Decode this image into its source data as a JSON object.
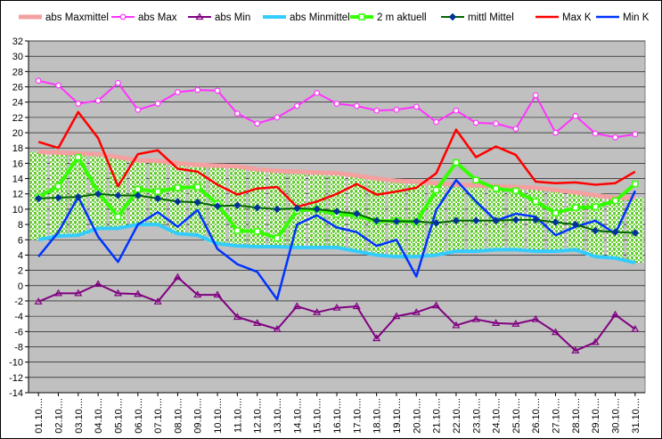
{
  "chart_data": {
    "type": "line",
    "ylim": [
      -14,
      32
    ],
    "y_ticks": [
      "32",
      "30",
      "28",
      "26",
      "24",
      "22",
      "20",
      "18",
      "16",
      "14",
      "12",
      "10",
      "8",
      "6",
      "4",
      "2",
      "0",
      "-2",
      "-4",
      "-6",
      "-8",
      "-10",
      "-12",
      "-14"
    ],
    "grid": true,
    "legend_position": "top",
    "categories": [
      "01.10.",
      "02.10.",
      "03.10.",
      "04.10.",
      "05.10.",
      "06.10.",
      "07.10.",
      "08.10.",
      "09.10.",
      "10.10.",
      "11.10.",
      "12.10.",
      "13.10.",
      "14.10.",
      "15.10.",
      "16.10.",
      "17.10.",
      "18.10.",
      "19.10.",
      "20.10.",
      "21.10.",
      "22.10.",
      "23.10.",
      "24.10.",
      "25.10.",
      "26.10.",
      "27.10.",
      "28.10.",
      "29.10.",
      "30.10.",
      "31.10."
    ],
    "tick_labels": [
      "01.10....",
      "02.10....",
      "03.10....",
      "04.10....",
      "05.10....",
      "06.10....",
      "07.10....",
      "08.10....",
      "09.10....",
      "10.10....",
      "11.10....",
      "12.10....",
      "13.10....",
      "14.10....",
      "15.10....",
      "16.10....",
      "17.10....",
      "18.10....",
      "19.10....",
      "20.10....",
      "21.10....",
      "22.10....",
      "23.10....",
      "24.10....",
      "25.10....",
      "26.10....",
      "27.10....",
      "28.10....",
      "29.10....",
      "30.10....",
      "31.10...."
    ],
    "band": {
      "upper_name": "abs Maxmittel",
      "lower_name": "abs Minmittel",
      "upper_color": "#f4a0a0",
      "lower_color": "#33ccff",
      "fill_color": "#66cc33",
      "upper": [
        17.5,
        17.4,
        17.3,
        17.2,
        16.8,
        16.4,
        16.3,
        16.0,
        15.8,
        15.7,
        15.6,
        15.2,
        15.0,
        14.9,
        14.8,
        14.7,
        14.4,
        14.0,
        13.7,
        13.6,
        13.4,
        13.2,
        13.1,
        13.0,
        12.9,
        12.8,
        12.5,
        12.2,
        11.8,
        11.5,
        11.5
      ],
      "lower": [
        6.0,
        6.5,
        6.6,
        7.5,
        7.5,
        8.0,
        8.0,
        6.8,
        6.6,
        5.5,
        5.2,
        5.1,
        5.1,
        5.0,
        5.0,
        5.0,
        4.5,
        4.0,
        3.8,
        3.8,
        4.0,
        4.5,
        4.5,
        4.7,
        4.7,
        4.5,
        4.5,
        4.7,
        3.8,
        3.6,
        3.0
      ]
    },
    "series": [
      {
        "name": "abs Max",
        "color": "#ff33ff",
        "marker": "circle-open",
        "values": [
          26.8,
          26.2,
          23.8,
          24.2,
          26.5,
          23.0,
          23.8,
          25.3,
          25.6,
          25.5,
          22.5,
          21.2,
          22.0,
          23.5,
          25.2,
          23.8,
          23.5,
          22.9,
          23.0,
          23.4,
          21.4,
          22.9,
          21.3,
          21.2,
          20.5,
          24.9,
          20.0,
          22.2,
          19.9,
          19.4,
          19.8
        ]
      },
      {
        "name": "abs Min",
        "color": "#800080",
        "marker": "triangle",
        "values": [
          -2.1,
          -1.0,
          -1.0,
          0.2,
          -1.0,
          -1.1,
          -2.1,
          1.1,
          -1.2,
          -1.2,
          -4.1,
          -4.9,
          -5.7,
          -2.7,
          -3.5,
          -2.9,
          -2.7,
          -6.9,
          -4.0,
          -3.5,
          -2.6,
          -5.2,
          -4.4,
          -4.9,
          -5.0,
          -4.4,
          -6.1,
          -8.5,
          -7.4,
          -3.8,
          -5.7
        ]
      },
      {
        "name": "2 m aktuell",
        "color": "#33ff00",
        "marker": "square-open",
        "values": [
          11.6,
          13.0,
          16.8,
          12.2,
          9.0,
          12.6,
          12.3,
          12.8,
          12.9,
          10.7,
          7.2,
          7.1,
          6.2,
          9.8,
          10.0,
          9.3,
          9.2,
          8.4,
          8.5,
          8.3,
          12.5,
          16.1,
          13.8,
          12.7,
          12.4,
          11.0,
          9.5,
          10.2,
          10.3,
          11.1,
          13.3
        ]
      },
      {
        "name": "mittl Mittel",
        "color": "#006600",
        "marker": "diamond",
        "values": [
          11.4,
          11.5,
          11.6,
          12.0,
          11.8,
          11.8,
          11.4,
          11.0,
          10.9,
          10.4,
          10.5,
          10.2,
          10.0,
          10.1,
          10.0,
          9.7,
          9.4,
          8.5,
          8.4,
          8.4,
          8.2,
          8.5,
          8.5,
          8.5,
          8.6,
          8.6,
          8.3,
          8.0,
          7.2,
          7.0,
          6.9
        ]
      },
      {
        "name": "Max K",
        "color": "#ff0000",
        "marker": "none",
        "values": [
          18.8,
          18.0,
          22.7,
          19.3,
          13.0,
          17.2,
          17.7,
          15.3,
          14.9,
          13.2,
          11.9,
          12.7,
          12.9,
          10.3,
          11.0,
          12.0,
          13.3,
          11.9,
          12.3,
          12.8,
          14.7,
          20.4,
          16.8,
          18.2,
          17.1,
          13.6,
          13.4,
          13.5,
          13.2,
          13.4,
          14.9
        ]
      },
      {
        "name": "Min K",
        "color": "#0033ff",
        "marker": "none",
        "values": [
          3.8,
          7.0,
          11.6,
          6.4,
          3.1,
          8.0,
          9.6,
          7.7,
          9.9,
          4.8,
          2.8,
          1.8,
          -1.8,
          8.0,
          9.2,
          7.6,
          7.0,
          5.2,
          6.0,
          1.2,
          9.9,
          13.8,
          11.0,
          8.5,
          9.4,
          9.0,
          6.6,
          7.7,
          8.5,
          6.8,
          12.4
        ]
      }
    ],
    "legend_order": [
      "abs Maxmittel",
      "abs Max",
      "abs Min",
      "abs Minmittel",
      "2 m aktuell",
      "mittl Mittel",
      "Max K",
      "Min K"
    ]
  }
}
